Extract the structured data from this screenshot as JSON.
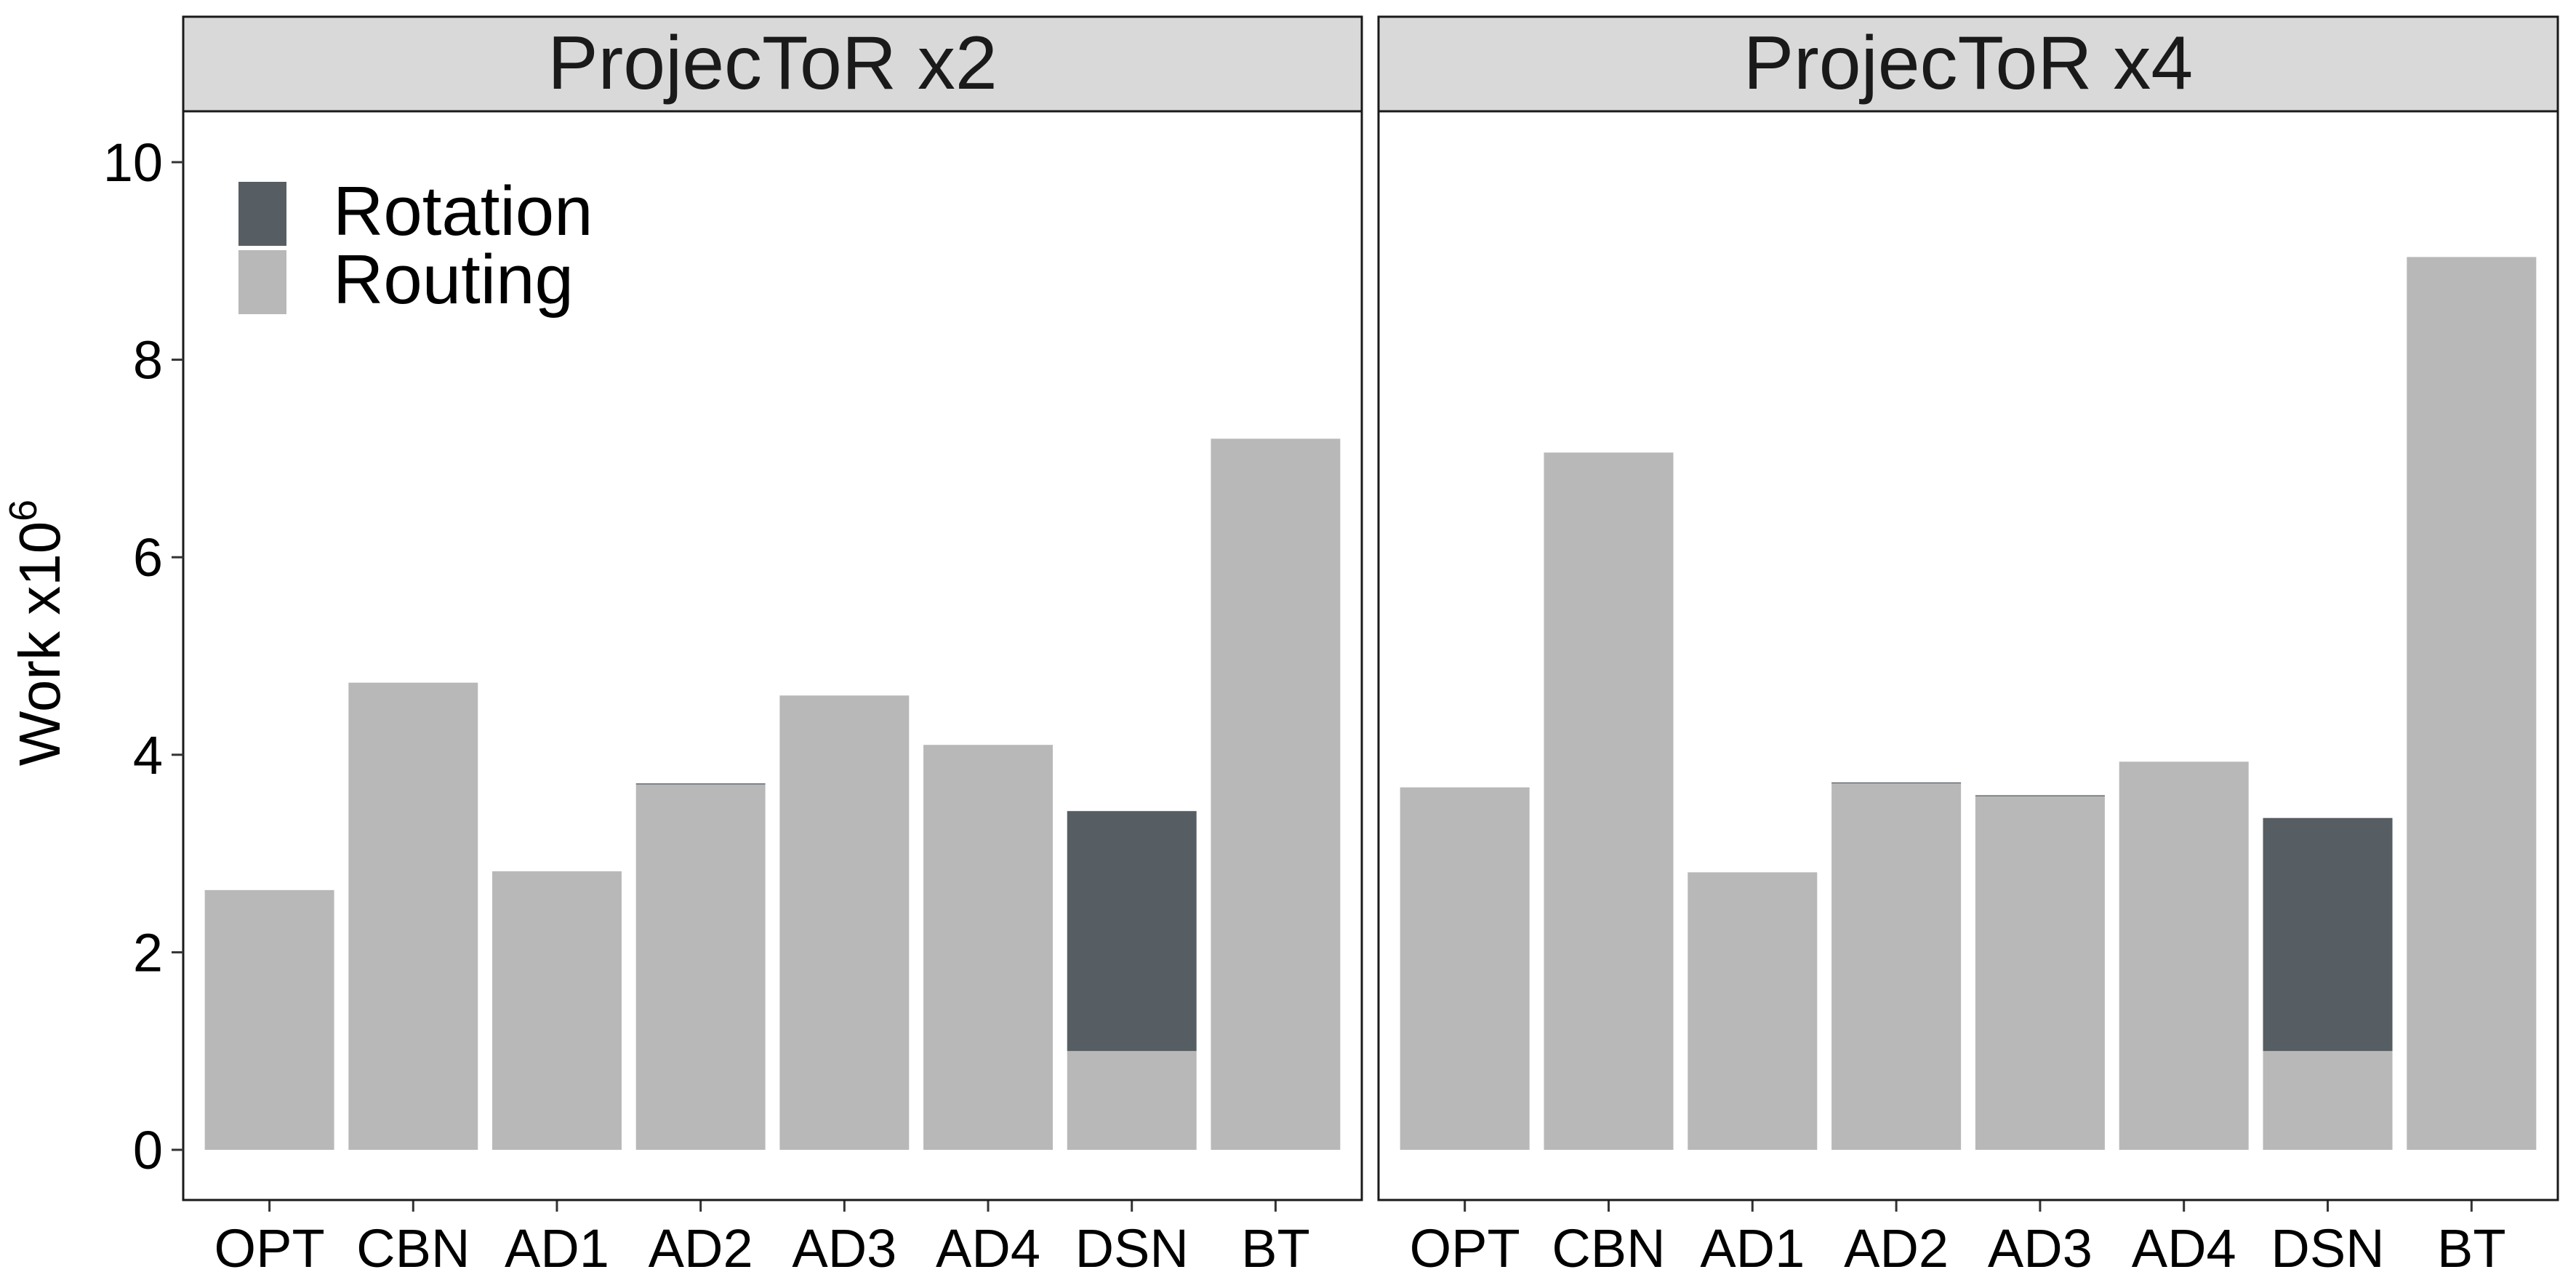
{
  "chart_data": {
    "type": "bar",
    "stacked": true,
    "ylabel": "Work x10",
    "ylabel_superscript": "6",
    "ylim": [
      0,
      10.5
    ],
    "yticks": [
      0,
      2,
      4,
      6,
      8,
      10
    ],
    "categories": [
      "OPT",
      "CBN",
      "AD1",
      "AD2",
      "AD3",
      "AD4",
      "DSN",
      "BT"
    ],
    "legend": {
      "position": "top-left",
      "entries": [
        {
          "name": "Rotation",
          "color": "#575e63"
        },
        {
          "name": "Routing",
          "color": "#b8b8b8"
        }
      ]
    },
    "grid": false,
    "facets": [
      {
        "title": "ProjecToR x2",
        "series": [
          {
            "name": "Routing",
            "values": [
              2.63,
              4.73,
              2.82,
              3.7,
              4.6,
              4.1,
              1.0,
              7.2
            ]
          },
          {
            "name": "Rotation",
            "values": [
              0,
              0,
              0,
              0.01,
              0,
              0,
              2.43,
              0
            ]
          }
        ]
      },
      {
        "title": "ProjecToR x4",
        "series": [
          {
            "name": "Routing",
            "values": [
              3.67,
              7.06,
              2.81,
              3.71,
              3.58,
              3.93,
              1.0,
              9.04
            ]
          },
          {
            "name": "Rotation",
            "values": [
              0,
              0,
              0,
              0.01,
              0.01,
              0,
              2.36,
              0
            ]
          }
        ]
      }
    ]
  }
}
